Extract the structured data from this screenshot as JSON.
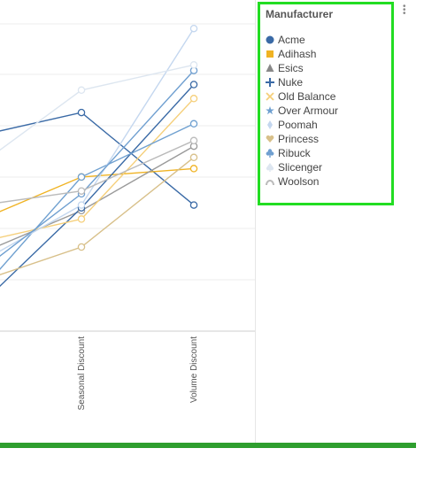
{
  "legend": {
    "title": "Manufacturer",
    "items": [
      {
        "label": "Acme",
        "color": "#3a6aa6",
        "icon": "circle-icon"
      },
      {
        "label": "Adihash",
        "color": "#f0b323",
        "icon": "square-icon"
      },
      {
        "label": "Esics",
        "color": "#888888",
        "icon": "triangle-icon"
      },
      {
        "label": "Nuke",
        "color": "#3a6aa6",
        "icon": "plus-icon"
      },
      {
        "label": "Old Balance",
        "color": "#f5cf7a",
        "icon": "x-icon"
      },
      {
        "label": "Over Armour",
        "color": "#6fa0d0",
        "icon": "star-icon"
      },
      {
        "label": "Poomah",
        "color": "#c4d7ef",
        "icon": "diamond-icon"
      },
      {
        "label": "Princess",
        "color": "#d8c08a",
        "icon": "heart-icon"
      },
      {
        "label": "Ribuck",
        "color": "#6f9fd0",
        "icon": "club-icon"
      },
      {
        "label": "Slicenger",
        "color": "#dde6f0",
        "icon": "spade-icon"
      },
      {
        "label": "Woolson",
        "color": "#bbbbbb",
        "icon": "arc-icon"
      }
    ]
  },
  "chart_data": {
    "type": "line",
    "categories": [
      "",
      "Seasonal Discount",
      "Volume Discount"
    ],
    "grid": true,
    "series": [
      {
        "name": "Acme",
        "color": "#3a6aa6",
        "values": [
          0.7,
          0.78,
          0.45
        ]
      },
      {
        "name": "Adihash",
        "color": "#f0b323",
        "values": [
          0.4,
          0.55,
          0.58
        ]
      },
      {
        "name": "Esics",
        "color": "#9a9a9a",
        "values": [
          0.28,
          0.43,
          0.66
        ]
      },
      {
        "name": "Nuke",
        "color": "#3a6aa6",
        "values": [
          0.1,
          0.44,
          0.88
        ]
      },
      {
        "name": "Old Balance",
        "color": "#f5cf7a",
        "values": [
          0.32,
          0.4,
          0.83
        ]
      },
      {
        "name": "Over Armour",
        "color": "#6fa0d0",
        "values": [
          0.15,
          0.55,
          0.74
        ]
      },
      {
        "name": "Poomah",
        "color": "#c4d7ef",
        "values": [
          0.25,
          0.45,
          1.08
        ]
      },
      {
        "name": "Princess",
        "color": "#d8c08a",
        "values": [
          0.18,
          0.3,
          0.62
        ]
      },
      {
        "name": "Ribuck",
        "color": "#6f9fd0",
        "values": [
          0.22,
          0.49,
          0.93
        ]
      },
      {
        "name": "Slicenger",
        "color": "#dde6f0",
        "values": [
          0.6,
          0.86,
          0.95
        ]
      },
      {
        "name": "Woolson",
        "color": "#bbbbbb",
        "values": [
          0.45,
          0.5,
          0.68
        ]
      }
    ]
  }
}
